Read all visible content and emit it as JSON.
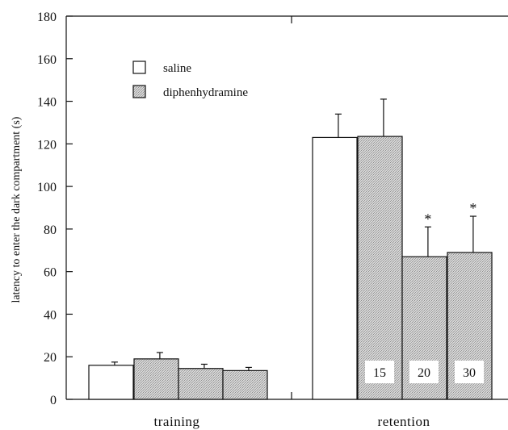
{
  "chart_data": {
    "type": "bar",
    "ylabel": "latency to enter the dark compartment (s)",
    "ylim": [
      0,
      180
    ],
    "yticks": [
      0,
      20,
      40,
      60,
      80,
      100,
      120,
      140,
      160,
      180
    ],
    "groups": [
      "training",
      "retention"
    ],
    "legend": {
      "placement": "top-left",
      "entries": [
        {
          "label": "saline",
          "fill": "#ffffff"
        },
        {
          "label": "diphenhydramine",
          "fill": "#cfcfcf"
        }
      ]
    },
    "bars": [
      {
        "group": "training",
        "series": "saline",
        "value": 16,
        "error": 1.5
      },
      {
        "group": "training",
        "series": "diphenhydramine",
        "value": 19,
        "error": 3
      },
      {
        "group": "training",
        "series": "diphenhydramine",
        "value": 14.5,
        "error": 2
      },
      {
        "group": "training",
        "series": "diphenhydramine",
        "value": 13.5,
        "error": 1.5
      },
      {
        "group": "retention",
        "series": "saline",
        "value": 123,
        "error": 11
      },
      {
        "group": "retention",
        "series": "diphenhydramine",
        "value": 123.5,
        "error": 17.5
      },
      {
        "group": "retention",
        "series": "diphenhydramine",
        "value": 67,
        "error": 14,
        "dose": "20",
        "significance": "*"
      },
      {
        "group": "retention",
        "series": "diphenhydramine",
        "value": 69,
        "error": 17,
        "dose": "30",
        "significance": "*"
      }
    ],
    "dose_labels": [
      "15",
      "20",
      "30"
    ]
  }
}
